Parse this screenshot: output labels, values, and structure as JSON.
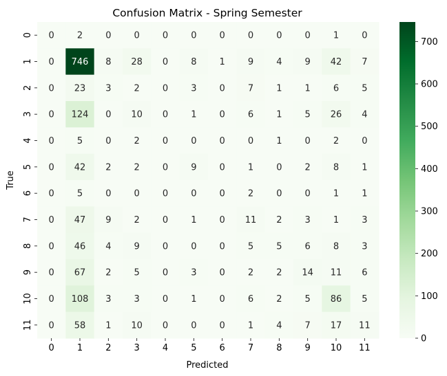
{
  "chart_data": {
    "type": "heatmap",
    "title": "Confusion Matrix - Spring Semester",
    "xlabel": "Predicted",
    "ylabel": "True",
    "x_labels": [
      "0",
      "1",
      "2",
      "3",
      "4",
      "5",
      "6",
      "7",
      "8",
      "9",
      "10",
      "11"
    ],
    "y_labels": [
      "0",
      "1",
      "2",
      "3",
      "4",
      "5",
      "6",
      "7",
      "8",
      "9",
      "10",
      "11"
    ],
    "values": [
      [
        0,
        2,
        0,
        0,
        0,
        0,
        0,
        0,
        0,
        0,
        1,
        0
      ],
      [
        0,
        746,
        8,
        28,
        0,
        8,
        1,
        9,
        4,
        9,
        42,
        7
      ],
      [
        0,
        23,
        3,
        2,
        0,
        3,
        0,
        7,
        1,
        1,
        6,
        5
      ],
      [
        0,
        124,
        0,
        10,
        0,
        1,
        0,
        6,
        1,
        5,
        26,
        4
      ],
      [
        0,
        5,
        0,
        2,
        0,
        0,
        0,
        0,
        1,
        0,
        2,
        0
      ],
      [
        0,
        42,
        2,
        2,
        0,
        9,
        0,
        1,
        0,
        2,
        8,
        1
      ],
      [
        0,
        5,
        0,
        0,
        0,
        0,
        0,
        2,
        0,
        0,
        1,
        1
      ],
      [
        0,
        47,
        9,
        2,
        0,
        1,
        0,
        11,
        2,
        3,
        1,
        3
      ],
      [
        0,
        46,
        4,
        9,
        0,
        0,
        0,
        5,
        5,
        6,
        8,
        3
      ],
      [
        0,
        67,
        2,
        5,
        0,
        3,
        0,
        2,
        2,
        14,
        11,
        6
      ],
      [
        0,
        108,
        3,
        3,
        0,
        1,
        0,
        6,
        2,
        5,
        86,
        5
      ],
      [
        0,
        58,
        1,
        10,
        0,
        0,
        0,
        1,
        4,
        7,
        17,
        11
      ]
    ],
    "colorscale": "Greens",
    "colormap_colors": [
      "#f7fcf5",
      "#e5f5e0",
      "#c7e9c0",
      "#a1d99b",
      "#74c476",
      "#41ab5d",
      "#238b45",
      "#006d2c",
      "#00441b"
    ],
    "vmin": 0,
    "vmax": 746,
    "colorbar_ticks": [
      0,
      100,
      200,
      300,
      400,
      500,
      600,
      700
    ],
    "annotations": true,
    "grid": false
  }
}
